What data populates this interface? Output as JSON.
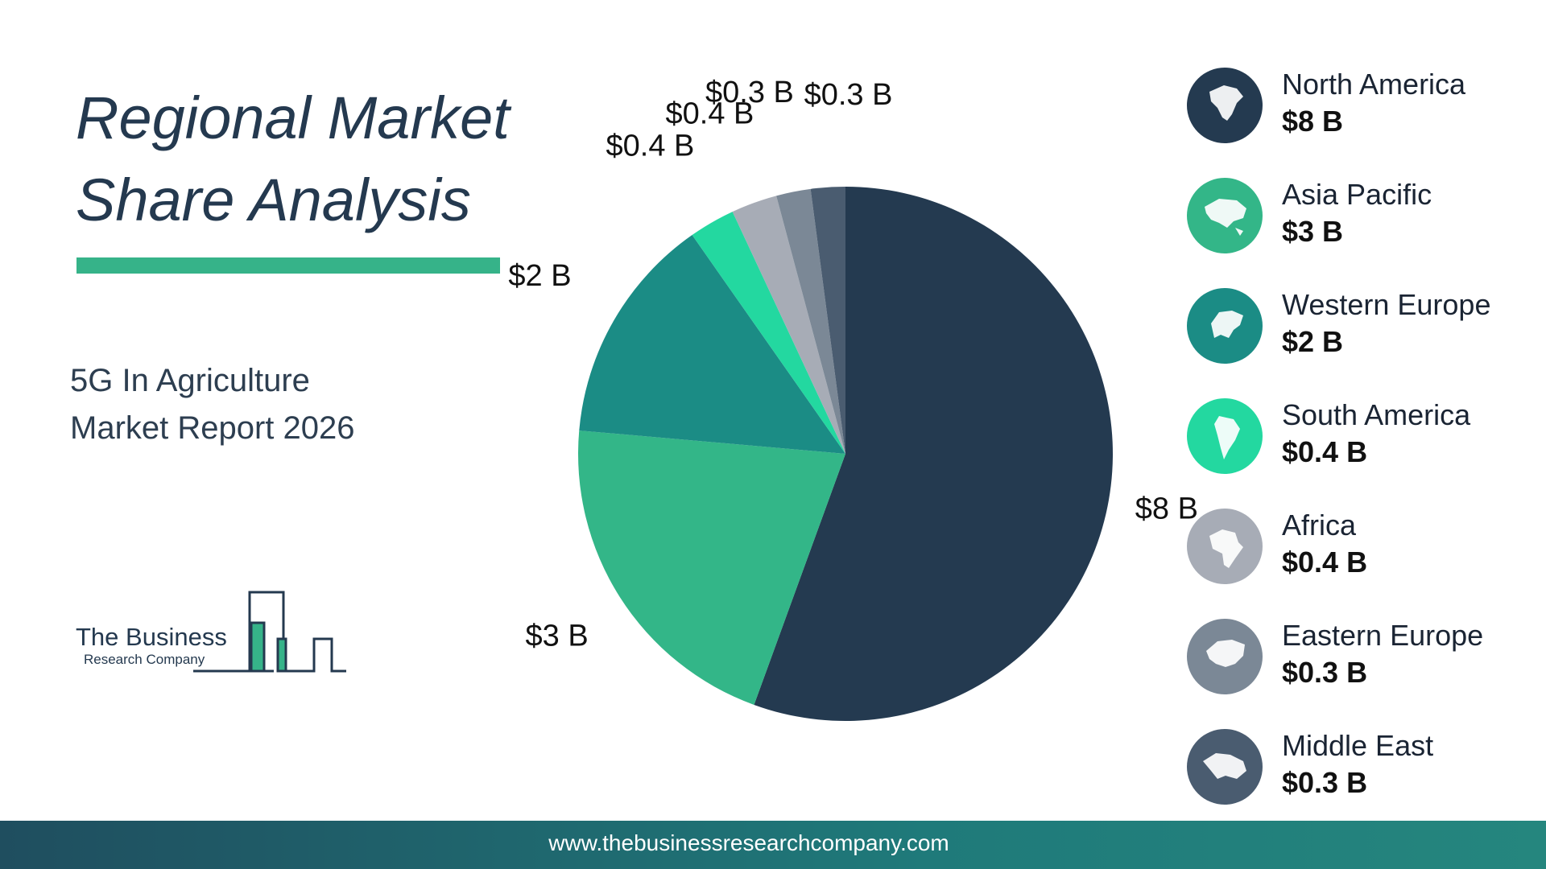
{
  "title": {
    "line1": "Regional Market",
    "line2": "Share Analysis"
  },
  "subtitle": {
    "line1": "5G In Agriculture",
    "line2": "Market Report 2026"
  },
  "logo": {
    "line1": "The Business",
    "line2": "Research Company"
  },
  "footer": {
    "url": "www.thebusinessresearchcompany.com"
  },
  "colors": {
    "north_america": "#243a50",
    "asia_pacific": "#33b688",
    "western_europe": "#1b8c85",
    "south_america": "#23d8a0",
    "africa": "#a7acb6",
    "eastern_europe": "#7b8896",
    "middle_east": "#4a5c70"
  },
  "chart_data": {
    "type": "pie",
    "categories": [
      "North America",
      "Asia Pacific",
      "Western Europe",
      "South America",
      "Africa",
      "Eastern Europe",
      "Middle East"
    ],
    "values": [
      8,
      3,
      2,
      0.4,
      0.4,
      0.3,
      0.3
    ],
    "unit": "B",
    "data_labels": [
      "$8 B",
      "$3 B",
      "$2 B",
      "$0.4 B",
      "$0.4 B",
      "$0.3 B",
      "$0.3 B"
    ],
    "legend_placement": "right"
  },
  "legend": [
    {
      "name": "North America",
      "value": "$8 B",
      "icon": "north-america-map-icon"
    },
    {
      "name": "Asia Pacific",
      "value": "$3 B",
      "icon": "asia-pacific-map-icon"
    },
    {
      "name": "Western Europe",
      "value": "$2 B",
      "icon": "western-europe-map-icon"
    },
    {
      "name": "South America",
      "value": "$0.4 B",
      "icon": "south-america-map-icon"
    },
    {
      "name": "Africa",
      "value": "$0.4 B",
      "icon": "africa-map-icon"
    },
    {
      "name": "Eastern Europe",
      "value": "$0.3 B",
      "icon": "eastern-europe-map-icon"
    },
    {
      "name": "Middle East",
      "value": "$0.3 B",
      "icon": "middle-east-map-icon"
    }
  ]
}
